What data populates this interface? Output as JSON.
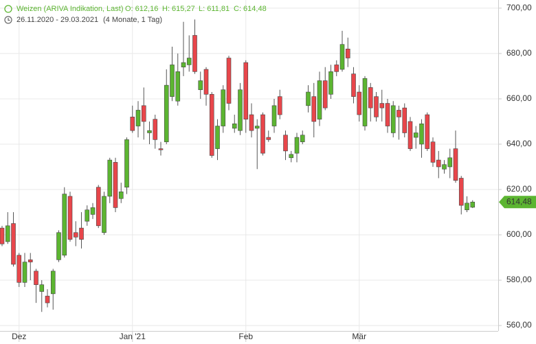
{
  "chart_data": {
    "type": "candlestick",
    "title": "Weizen (ARIVA Indikation, Last)",
    "header_values": [
      "O: 612,16",
      "H: 615,27",
      "L: 611,81",
      "C: 614,48"
    ],
    "date_range": "26.11.2020 - 29.03.2021",
    "period": "(4 Monate, 1 Tag)",
    "categories": [
      null,
      null,
      null,
      "Dez",
      null,
      null,
      null,
      null,
      null,
      null,
      null,
      null,
      null,
      null,
      null,
      null,
      null,
      null,
      null,
      null,
      null,
      null,
      null,
      "Jan '21",
      null,
      null,
      null,
      null,
      null,
      null,
      null,
      null,
      null,
      null,
      null,
      null,
      null,
      null,
      null,
      null,
      null,
      null,
      null,
      "Feb",
      null,
      null,
      null,
      null,
      null,
      null,
      null,
      null,
      null,
      null,
      null,
      null,
      null,
      null,
      null,
      null,
      null,
      null,
      null,
      "Mär",
      null,
      null,
      null,
      null,
      null,
      null,
      null,
      null,
      null,
      null,
      null,
      null,
      null,
      null,
      null,
      null,
      null,
      null,
      null,
      null
    ],
    "open": [
      603,
      597,
      605,
      591,
      579,
      589,
      584,
      575,
      573,
      574,
      589,
      591,
      617,
      601,
      603,
      606,
      609,
      621,
      601,
      617,
      632,
      616,
      621,
      652,
      648,
      657,
      645,
      651,
      638,
      641,
      661,
      659,
      674,
      675,
      688,
      664,
      673,
      662,
      638,
      648,
      678,
      647,
      646,
      676,
      653,
      647,
      653,
      643,
      648,
      661,
      644,
      634,
      636,
      641,
      657,
      661,
      651,
      668,
      662,
      675,
      673,
      682,
      671,
      663,
      648,
      665,
      661,
      658,
      658,
      645,
      655,
      656,
      650,
      643,
      640,
      653,
      641,
      633,
      629,
      630,
      638,
      625,
      611,
      612.16
    ],
    "high": [
      604,
      610,
      610,
      592,
      592,
      592,
      585,
      580,
      576,
      585,
      602,
      621,
      619,
      606,
      610,
      613,
      614,
      622,
      619,
      634,
      634,
      623,
      643,
      657,
      659,
      665,
      650,
      653,
      641,
      673,
      683,
      680,
      694,
      688,
      695,
      672,
      674,
      663,
      651,
      666,
      679,
      653,
      667,
      677,
      658,
      651,
      654,
      646,
      660,
      664,
      646,
      637,
      645,
      646,
      666,
      667,
      672,
      674,
      675,
      677,
      690,
      687,
      674,
      666,
      670,
      667,
      663,
      664,
      660,
      659,
      657,
      658,
      652,
      648,
      651,
      654,
      643,
      637,
      633,
      638,
      646,
      626,
      617,
      615.27
    ],
    "low": [
      595,
      596,
      586,
      577,
      577,
      580,
      570,
      566,
      568,
      567,
      588,
      590,
      597,
      595,
      594,
      604,
      607,
      603,
      600,
      614,
      610,
      614,
      618,
      645,
      643,
      642,
      640,
      638,
      635,
      640,
      659,
      657,
      670,
      672,
      671,
      660,
      657,
      634,
      633,
      645,
      655,
      645,
      644,
      645,
      643,
      629,
      635,
      641,
      645,
      651,
      633,
      632,
      632,
      640,
      654,
      643,
      648,
      655,
      660,
      670,
      672,
      674,
      658,
      650,
      646,
      650,
      650,
      650,
      645,
      643,
      642,
      643,
      637,
      638,
      634,
      637,
      630,
      625,
      627,
      625,
      623,
      609,
      610,
      611.81
    ],
    "close": [
      596,
      604,
      587,
      579,
      588,
      588,
      578,
      578,
      570,
      584,
      601,
      618,
      598,
      599,
      598,
      611,
      612,
      604,
      617,
      633,
      612,
      619,
      642,
      646,
      655,
      650,
      646,
      642,
      637.5,
      666,
      675,
      672,
      676,
      678,
      672,
      668,
      662,
      635,
      648,
      664,
      658,
      649,
      664,
      651,
      646,
      648,
      636,
      642,
      657,
      653,
      637,
      635.5,
      643,
      644,
      663,
      650,
      668,
      656,
      672,
      672,
      684,
      678,
      661,
      653,
      669,
      656,
      652,
      656,
      648,
      657,
      652,
      645,
      638,
      645,
      649,
      638,
      632,
      630,
      631,
      634,
      624,
      613,
      614,
      614.48
    ],
    "up_color": "#5cb531",
    "down_color": "#e8464b",
    "last_price": {
      "value": 614.48,
      "label": "614,48"
    },
    "ylim": [
      557.6,
      703.6
    ],
    "yticks": [
      {
        "value": 560,
        "label": "560,00"
      },
      {
        "value": 580,
        "label": "580,00"
      },
      {
        "value": 600,
        "label": "600,00"
      },
      {
        "value": 620,
        "label": "620,00"
      },
      {
        "value": 640,
        "label": "640,00"
      },
      {
        "value": 660,
        "label": "660,00"
      },
      {
        "value": 680,
        "label": "680,00"
      },
      {
        "value": 700,
        "label": "700,00"
      }
    ],
    "grid": true
  }
}
